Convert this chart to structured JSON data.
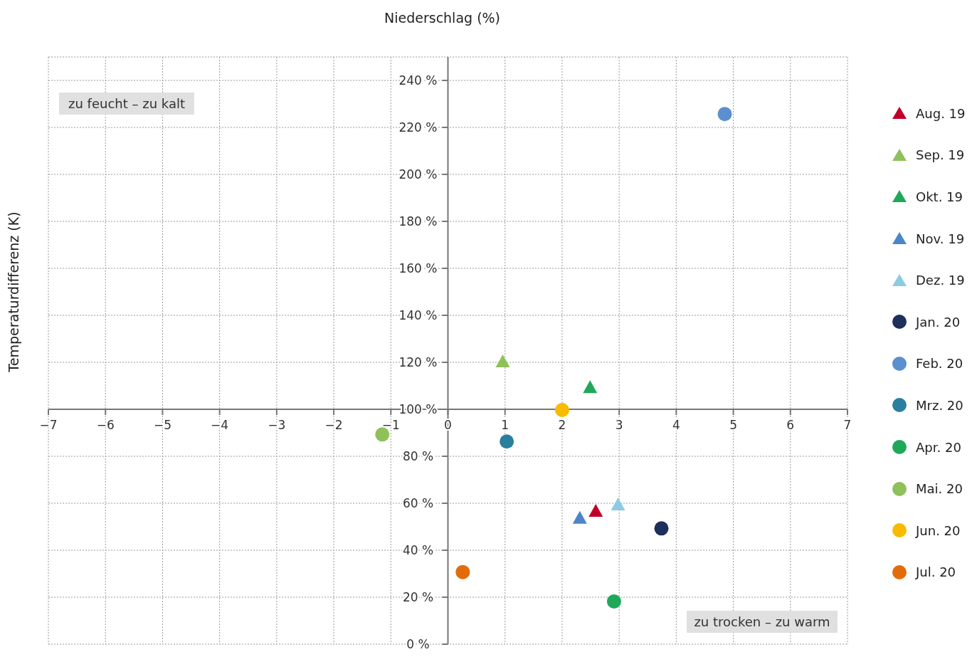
{
  "chart_data": {
    "type": "scatter",
    "xlabel": "Niederschlag (%)",
    "ylabel": "Temperaturdifferenz (K)",
    "xlim": [
      -7,
      7
    ],
    "ylim": [
      0,
      250
    ],
    "xticks": [
      {
        "value": -7,
        "label": "−7"
      },
      {
        "value": -6,
        "label": "−6"
      },
      {
        "value": -5,
        "label": "−5"
      },
      {
        "value": -4,
        "label": "−4"
      },
      {
        "value": -3,
        "label": "−3"
      },
      {
        "value": -2,
        "label": "−2"
      },
      {
        "value": -1,
        "label": "−1"
      },
      0,
      1,
      2,
      3,
      4,
      5,
      6,
      7
    ],
    "yticks": [
      {
        "value": 0,
        "label": "0 %"
      },
      {
        "value": 20,
        "label": "20 %"
      },
      {
        "value": 40,
        "label": "40 %"
      },
      {
        "value": 60,
        "label": "60 %"
      },
      {
        "value": 80,
        "label": "80 %"
      },
      {
        "value": 100,
        "label": "100 %"
      },
      {
        "value": 120,
        "label": "120 %"
      },
      {
        "value": 140,
        "label": "140 %"
      },
      {
        "value": 160,
        "label": "160 %"
      },
      {
        "value": 180,
        "label": "180 %"
      },
      {
        "value": 200,
        "label": "200 %"
      },
      {
        "value": 220,
        "label": "220 %"
      },
      {
        "value": 240,
        "label": "240 %"
      }
    ],
    "grid": true,
    "legend": "right",
    "annotations": [
      "zu feucht – zu kalt",
      "zu trocken – zu warm"
    ],
    "series": [
      {
        "name": "Aug. 19",
        "color": "#c0002a",
        "marker": "triangle",
        "x": [
          2.59
        ],
        "values": [
          56.7
        ]
      },
      {
        "name": "Sep. 19",
        "color": "#8fc15a",
        "marker": "triangle",
        "x": [
          0.96
        ],
        "values": [
          120.3
        ]
      },
      {
        "name": "Okt. 19",
        "color": "#1fa85a",
        "marker": "triangle",
        "x": [
          2.49
        ],
        "values": [
          109.3
        ]
      },
      {
        "name": "Nov. 19",
        "color": "#4a86c8",
        "marker": "triangle",
        "x": [
          2.31
        ],
        "values": [
          53.7
        ]
      },
      {
        "name": "Dez. 19",
        "color": "#8ccbe0",
        "marker": "triangle",
        "x": [
          2.98
        ],
        "values": [
          59.4
        ]
      },
      {
        "name": "Jan. 20",
        "color": "#1e2f5c",
        "marker": "circle",
        "x": [
          3.74
        ],
        "values": [
          49.3
        ]
      },
      {
        "name": "Feb. 20",
        "color": "#5b8fd0",
        "marker": "circle",
        "x": [
          4.85
        ],
        "values": [
          225.7
        ]
      },
      {
        "name": "Mrz. 20",
        "color": "#2a7f9e",
        "marker": "circle",
        "x": [
          1.03
        ],
        "values": [
          86.3
        ]
      },
      {
        "name": "Apr. 20",
        "color": "#1fa85a",
        "marker": "circle",
        "x": [
          2.91
        ],
        "values": [
          18.2
        ]
      },
      {
        "name": "Mai. 20",
        "color": "#8fc15a",
        "marker": "circle",
        "x": [
          -1.15
        ],
        "values": [
          89.3
        ]
      },
      {
        "name": "Jun. 20",
        "color": "#f8bb00",
        "marker": "circle",
        "x": [
          2.0
        ],
        "values": [
          99.7
        ]
      },
      {
        "name": "Jul. 20",
        "color": "#e36c0a",
        "marker": "circle",
        "x": [
          0.26
        ],
        "values": [
          30.7
        ]
      }
    ]
  }
}
